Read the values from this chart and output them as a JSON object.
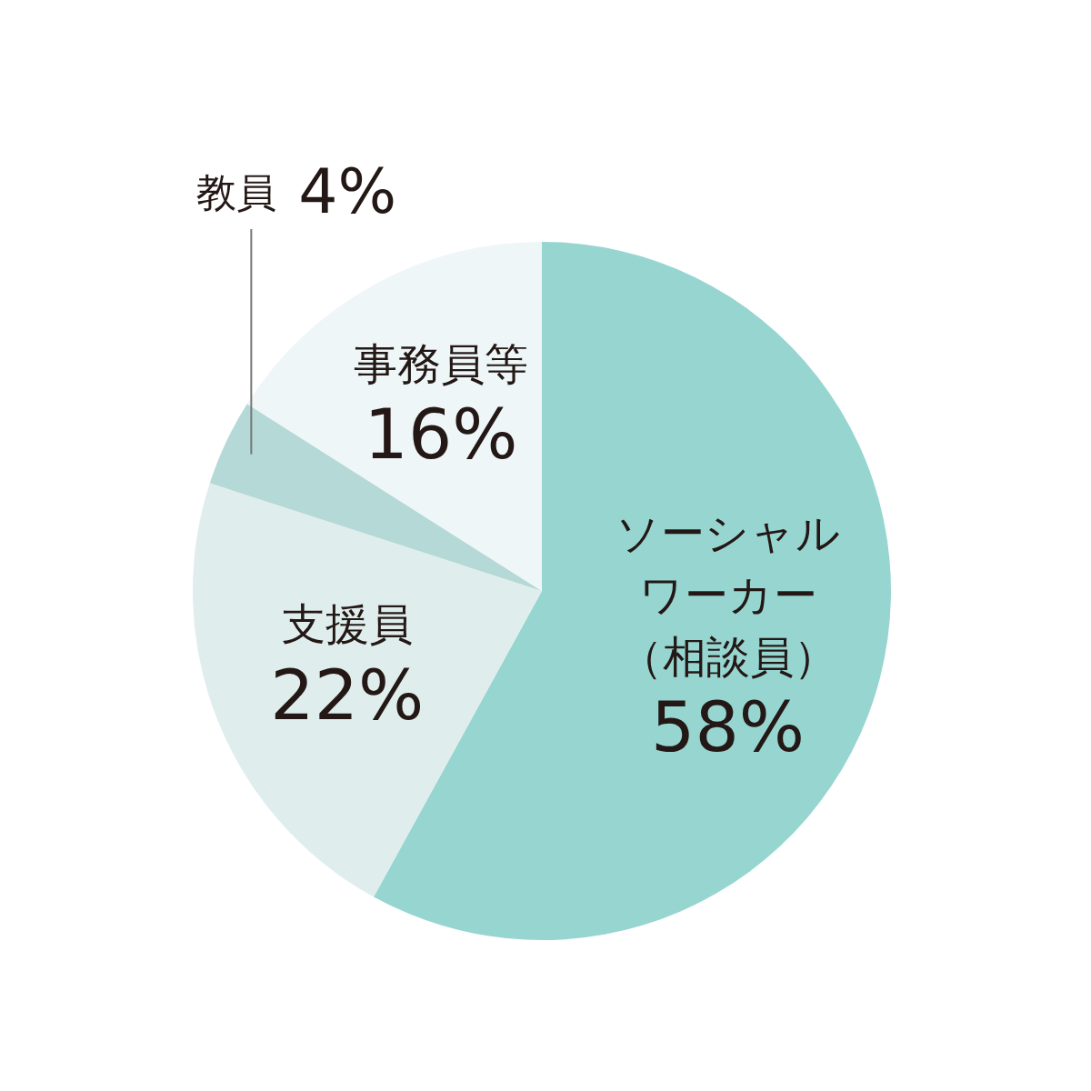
{
  "chart_data": {
    "type": "pie",
    "categories": [
      "ソーシャルワーカー（相談員）",
      "支援員",
      "教員",
      "事務員等"
    ],
    "values": [
      58,
      22,
      4,
      16
    ],
    "value_labels": [
      "58%",
      "22%",
      "4%",
      "16%"
    ],
    "colors": [
      "#97d5d1",
      "#dfeeec",
      "#b4d9d6",
      "#eef6f8"
    ],
    "legend": false
  }
}
